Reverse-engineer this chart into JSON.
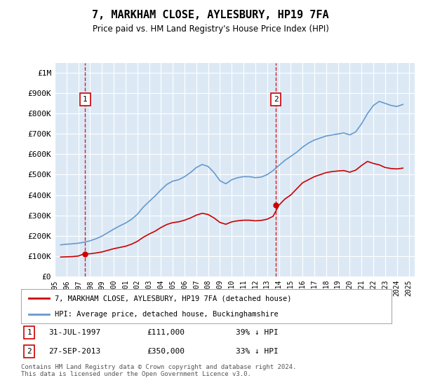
{
  "title": "7, MARKHAM CLOSE, AYLESBURY, HP19 7FA",
  "subtitle": "Price paid vs. HM Land Registry's House Price Index (HPI)",
  "background_color": "#dce9f5",
  "red_line_label": "7, MARKHAM CLOSE, AYLESBURY, HP19 7FA (detached house)",
  "blue_line_label": "HPI: Average price, detached house, Buckinghamshire",
  "sale1_date": "31-JUL-1997",
  "sale1_price": 111000,
  "sale1_hpi_pct": "39% ↓ HPI",
  "sale2_date": "27-SEP-2013",
  "sale2_price": 350000,
  "sale2_hpi_pct": "33% ↓ HPI",
  "ylim": [
    0,
    1050000
  ],
  "xlim_start": 1995.3,
  "xlim_end": 2025.5,
  "footer": "Contains HM Land Registry data © Crown copyright and database right 2024.\nThis data is licensed under the Open Government Licence v3.0.",
  "red_color": "#cc0000",
  "blue_color": "#6699cc",
  "dashed_color": "#cc0000",
  "sale1_x": 1997.58,
  "sale2_x": 2013.74,
  "hpi_years": [
    1995.5,
    1996.0,
    1996.5,
    1997.0,
    1997.5,
    1998.0,
    1998.5,
    1999.0,
    1999.5,
    2000.0,
    2000.5,
    2001.0,
    2001.5,
    2002.0,
    2002.5,
    2003.0,
    2003.5,
    2004.0,
    2004.5,
    2005.0,
    2005.5,
    2006.0,
    2006.5,
    2007.0,
    2007.5,
    2008.0,
    2008.5,
    2009.0,
    2009.5,
    2010.0,
    2010.5,
    2011.0,
    2011.5,
    2012.0,
    2012.5,
    2013.0,
    2013.5,
    2014.0,
    2014.5,
    2015.0,
    2015.5,
    2016.0,
    2016.5,
    2017.0,
    2017.5,
    2018.0,
    2018.5,
    2019.0,
    2019.5,
    2020.0,
    2020.5,
    2021.0,
    2021.5,
    2022.0,
    2022.5,
    2023.0,
    2023.5,
    2024.0,
    2024.5
  ],
  "hpi_values": [
    155000,
    158000,
    160000,
    163000,
    168000,
    175000,
    185000,
    198000,
    215000,
    232000,
    248000,
    262000,
    280000,
    305000,
    340000,
    368000,
    395000,
    425000,
    452000,
    468000,
    475000,
    490000,
    510000,
    535000,
    550000,
    540000,
    510000,
    470000,
    455000,
    475000,
    485000,
    490000,
    490000,
    485000,
    488000,
    500000,
    520000,
    545000,
    570000,
    590000,
    610000,
    635000,
    655000,
    670000,
    680000,
    690000,
    695000,
    700000,
    705000,
    695000,
    710000,
    750000,
    800000,
    840000,
    860000,
    850000,
    840000,
    835000,
    845000
  ],
  "red_years": [
    1995.5,
    1996.0,
    1996.5,
    1997.0,
    1997.5,
    1998.0,
    1998.5,
    1999.0,
    1999.5,
    2000.0,
    2000.5,
    2001.0,
    2001.5,
    2002.0,
    2002.5,
    2003.0,
    2003.5,
    2004.0,
    2004.5,
    2005.0,
    2005.5,
    2006.0,
    2006.5,
    2007.0,
    2007.5,
    2008.0,
    2008.5,
    2009.0,
    2009.5,
    2010.0,
    2010.5,
    2011.0,
    2011.5,
    2012.0,
    2012.5,
    2013.0,
    2013.5,
    2014.0,
    2014.5,
    2015.0,
    2015.5,
    2016.0,
    2016.5,
    2017.0,
    2017.5,
    2018.0,
    2018.5,
    2019.0,
    2019.5,
    2020.0,
    2020.5,
    2021.0,
    2021.5,
    2022.0,
    2022.5,
    2023.0,
    2023.5,
    2024.0,
    2024.5
  ],
  "red_values": [
    95000,
    96000,
    97000,
    100000,
    111000,
    111000,
    115000,
    120000,
    128000,
    136000,
    142000,
    148000,
    158000,
    172000,
    192000,
    208000,
    222000,
    240000,
    255000,
    264000,
    268000,
    276000,
    287000,
    301000,
    310000,
    304000,
    287000,
    265000,
    256000,
    268000,
    273000,
    276000,
    276000,
    273000,
    275000,
    281000,
    295000,
    350000,
    380000,
    400000,
    430000,
    460000,
    475000,
    490000,
    500000,
    510000,
    515000,
    518000,
    520000,
    512000,
    522000,
    545000,
    565000,
    555000,
    548000,
    535000,
    530000,
    528000,
    532000
  ]
}
